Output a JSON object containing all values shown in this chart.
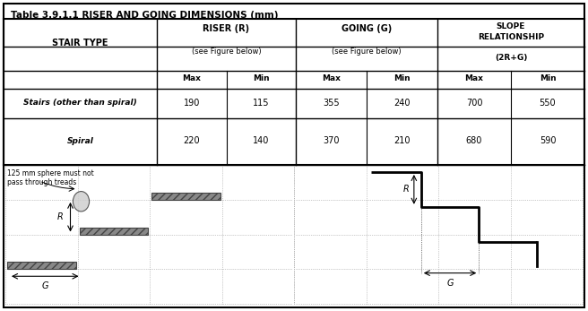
{
  "title": "Table 3.9.1.1 RISER AND GOING DIMENSIONS (mm)",
  "col_headers": [
    "STAIR TYPE",
    "RISER (R)\n\n(see Figure below)",
    "GOING (G)\n\n(see Figure below)",
    "SLOPE\nRELATIONSHIP\n\n(2R+G)"
  ],
  "sub_headers": [
    "Max",
    "Min",
    "Max",
    "Min",
    "Max",
    "Min"
  ],
  "rows": [
    [
      "Stairs (other than spiral)",
      "190",
      "115",
      "355",
      "240",
      "700",
      "550"
    ],
    [
      "Spiral",
      "220",
      "140",
      "370",
      "210",
      "680",
      "590"
    ]
  ],
  "note_text": "125 mm sphere must not\npass through treads",
  "bg_color": "#ffffff",
  "border_color": "#000000",
  "grid_color": "#aaaaaa",
  "hatch_color": "#888888"
}
